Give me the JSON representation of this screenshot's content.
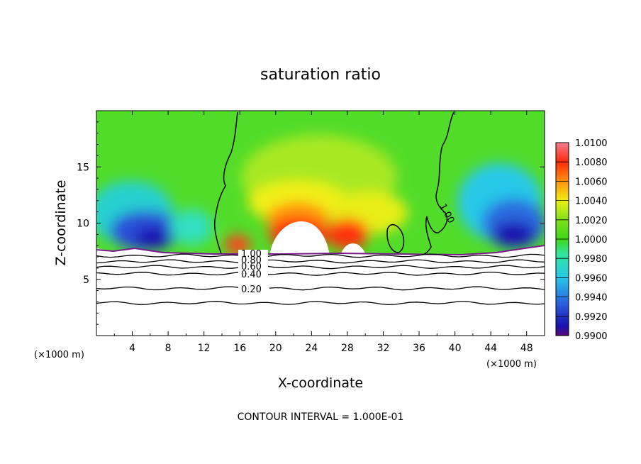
{
  "chart_data": {
    "type": "heatmap",
    "title": "saturation ratio",
    "xlabel": "X-coordinate",
    "ylabel": "Z-coordinate",
    "x_unit_left": "(×1000 m)",
    "x_unit_right": "(×1000 m)",
    "xlim": [
      0,
      50
    ],
    "ylim": [
      0,
      20
    ],
    "x_ticks": [
      4,
      8,
      12,
      16,
      20,
      24,
      28,
      32,
      36,
      40,
      44,
      48
    ],
    "y_ticks": [
      5,
      10,
      15
    ],
    "footer": "CONTOUR INTERVAL = 1.000E-01",
    "colorbar": {
      "levels": [
        "0.9900",
        "0.9920",
        "0.9940",
        "0.9960",
        "0.9980",
        "1.0000",
        "1.0020",
        "1.0040",
        "1.0060",
        "1.0080",
        "1.0100"
      ],
      "colors": [
        "#5a0a7a",
        "#1a10b0",
        "#2a6ae0",
        "#28c8e8",
        "#30e8a0",
        "#3fd61a",
        "#7ee21a",
        "#f2f012",
        "#ff9010",
        "#ff2a0a",
        "#f27c8c"
      ]
    },
    "contour_labels": [
      "1.00",
      "0.80",
      "0.60",
      "0.40",
      "0.20"
    ],
    "lower_contours": [
      {
        "level": 1.0,
        "z": 7.1
      },
      {
        "level": 0.8,
        "z": 6.6
      },
      {
        "level": 0.6,
        "z": 6.1
      },
      {
        "level": 0.4,
        "z": 5.5
      },
      {
        "level": 0.2,
        "z": 4.2
      },
      {
        "level": null,
        "z": 2.9
      }
    ],
    "upper_contour_label": "1.00"
  }
}
